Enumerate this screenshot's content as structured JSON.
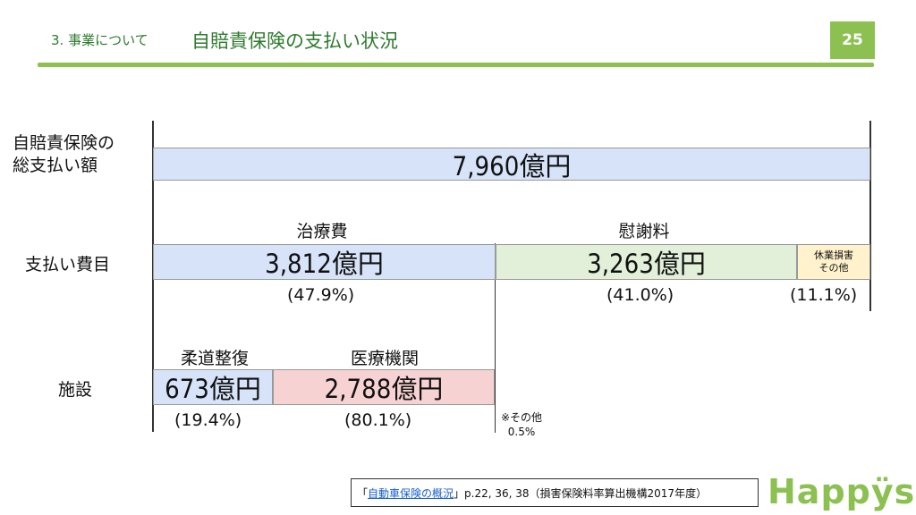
{
  "header": {
    "subtitle": "3. 事業について",
    "title": "自賠責保険の支払い状況",
    "page_number": "25"
  },
  "rows": {
    "total_label": "自賠責保険の\n総支払い額",
    "items_label": "支払い費目",
    "facility_label": "施設"
  },
  "chart_data": {
    "type": "bar",
    "title": "自賠責保険の支払い状況",
    "unit": "億円",
    "total": {
      "label": "自賠責保険の総支払い額",
      "value": 7960,
      "text": "7,960億円"
    },
    "items": [
      {
        "name": "治療費",
        "value": 3812,
        "text": "3,812億円",
        "pct": "(47.9%)",
        "pct_value": 47.9
      },
      {
        "name": "慰謝料",
        "value": 3263,
        "text": "3,263億円",
        "pct": "(41.0%)",
        "pct_value": 41.0
      },
      {
        "name": "休業損害\nその他",
        "value": null,
        "text": "",
        "pct": "(11.1%)",
        "pct_value": 11.1
      }
    ],
    "facility": [
      {
        "name": "柔道整復",
        "value": 673,
        "text": "673億円",
        "pct": "(19.4%)",
        "pct_value": 19.4
      },
      {
        "name": "医療機関",
        "value": 2788,
        "text": "2,788億円",
        "pct": "(80.1%)",
        "pct_value": 80.1
      }
    ],
    "facility_note": "※その他\n0.5%"
  },
  "colors": {
    "accent": "#8cc152",
    "header_text": "#2d7a2d",
    "total_fill": "#d6e3f8",
    "treatment_fill": "#d6e3f8",
    "consolation_fill": "#e2f0d9",
    "other_fill": "#fff2cc",
    "judo_fill": "#d6e3f8",
    "medical_fill": "#f7d2d2"
  },
  "source": {
    "prefix": "「",
    "link_text": "自動車保険の概況",
    "suffix": "」p.22, 36, 38（損害保険料率算出機構2017年度）"
  },
  "logo": {
    "text": "Happÿs"
  }
}
